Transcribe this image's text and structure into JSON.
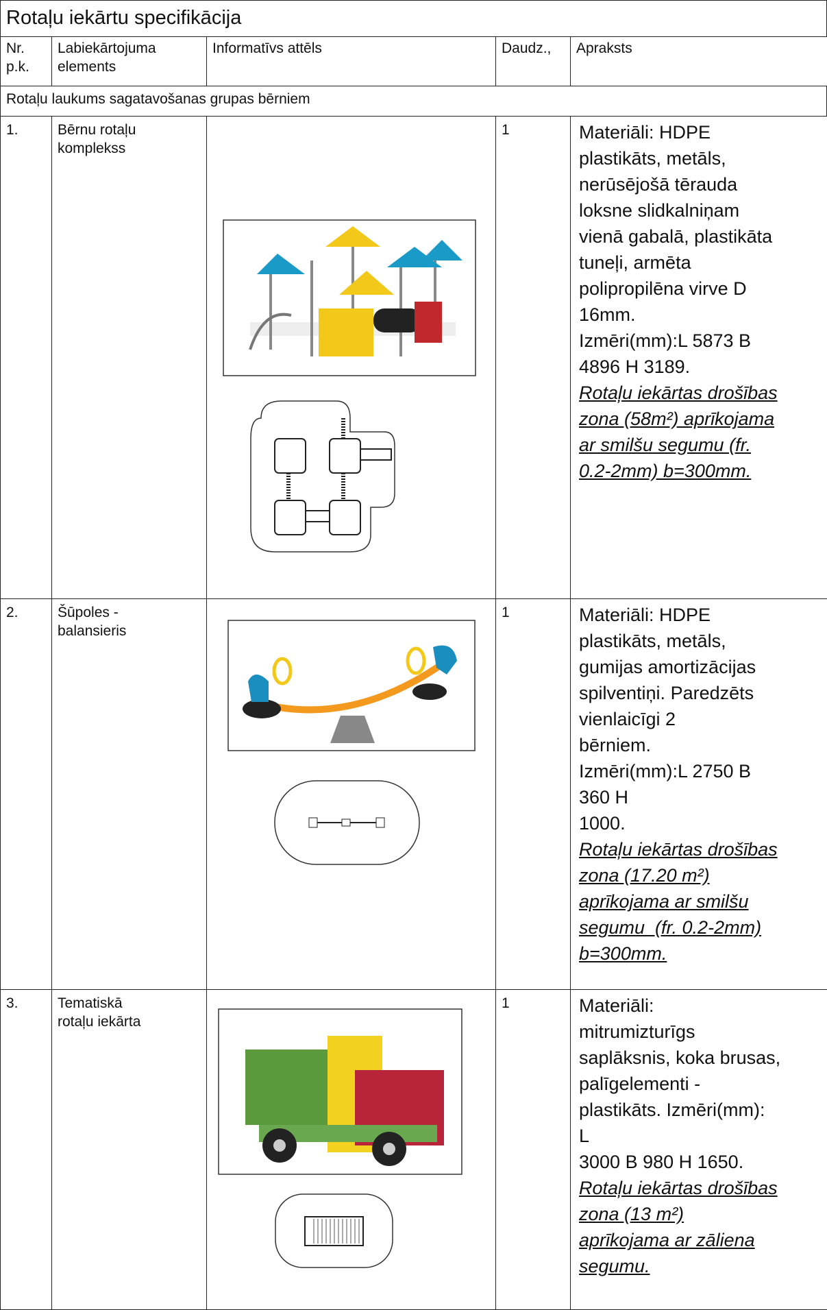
{
  "title": "Rotaļu iekārtu specifikācija",
  "header": {
    "nr": [
      "Nr.",
      "p.k."
    ],
    "element": [
      "Labiekārtojuma",
      "elements"
    ],
    "image": "Informatīvs attēls",
    "qty": "Daudz.,",
    "description": "Apraksts"
  },
  "section": "Rotaļu laukums sagatavošanas grupas bērniem",
  "rows": [
    {
      "nr": "1.",
      "element": [
        "Bērnu rotaļu",
        "komplekss"
      ],
      "qty": "1",
      "description": [
        "Materiāli: HDPE",
        "plastikāts, metāls,",
        "nerūsējošā tērauda",
        "loksne slidkalniņam",
        "vienā gabalā, plastikāta",
        "tuneļi, armēta",
        "polipropilēna virve D",
        "16mm.",
        "Izmēri(mm):L 5873 B",
        "4896 H 3189."
      ],
      "safety": [
        "Rotaļu iekārtas drošības",
        "zona (58m²) aprīkojama",
        "ar smilšu segumu (fr.",
        "0.2-2mm) b=300mm."
      ]
    },
    {
      "nr": "2.",
      "element": [
        "Šūpoles -",
        "balansieris"
      ],
      "qty": "1",
      "description": [
        "Materiāli: HDPE",
        "plastikāts, metāls,",
        "gumijas amortizācijas",
        "spilventiņi. Paredzēts",
        "vienlaicīgi 2",
        "bērniem.",
        "Izmēri(mm):L 2750 B",
        "360 H",
        "1000."
      ],
      "safety": [
        "Rotaļu iekārtas drošības",
        "zona (17.20 m²)",
        "aprīkojama ar smilšu",
        "segumu  (fr. 0.2-2mm)",
        "b=300mm."
      ]
    },
    {
      "nr": "3.",
      "element": [
        "Tematiskā",
        "rotaļu iekārta"
      ],
      "qty": "1",
      "description": [
        "Materiāli:",
        "mitrumizturīgs",
        "saplāksnis, koka brusas,",
        "palīgelementi -",
        "plastikāts. Izmēri(mm):",
        "L",
        "3000 B 980 H 1650."
      ],
      "safety": [
        "Rotaļu iekārtas drošības",
        "zona (13 m²)",
        "aprīkojama ar zāliena",
        "segumu."
      ]
    }
  ]
}
